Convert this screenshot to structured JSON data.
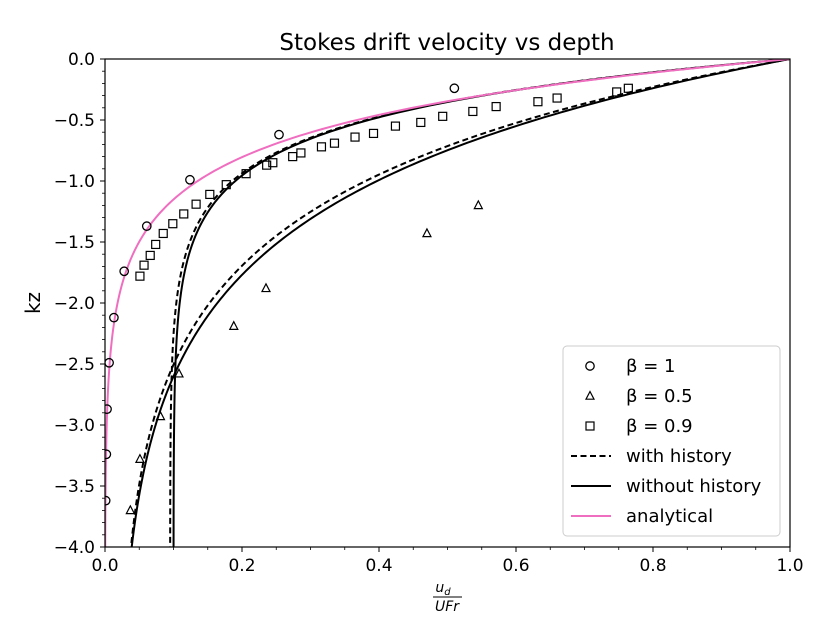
{
  "chart_data": {
    "type": "scatter",
    "title": "Stokes drift velocity vs depth",
    "xlabel_num": "u",
    "xlabel_sub": "d",
    "xlabel_den": "UFr",
    "ylabel": "kz",
    "xlim": [
      0.0,
      1.0
    ],
    "ylim": [
      -4.0,
      0.0
    ],
    "x_ticks": [
      0.0,
      0.2,
      0.4,
      0.6,
      0.8,
      1.0
    ],
    "x_tick_labels": [
      "0.0",
      "0.2",
      "0.4",
      "0.6",
      "0.8",
      "1.0"
    ],
    "y_ticks": [
      0.0,
      -0.5,
      -1.0,
      -1.5,
      -2.0,
      -2.5,
      -3.0,
      -3.5,
      -4.0
    ],
    "y_tick_labels": [
      "0.0",
      "−0.5",
      "−1.0",
      "−1.5",
      "−2.0",
      "−2.5",
      "−3.0",
      "−3.5",
      "−4.0"
    ],
    "grid": false,
    "legend_position": "lower-right",
    "markers": [
      {
        "name": "β =  1",
        "marker": "circle",
        "points": [
          [
            0.001,
            -3.62
          ],
          [
            0.002,
            -3.24
          ],
          [
            0.003,
            -2.87
          ],
          [
            0.006,
            -2.49
          ],
          [
            0.013,
            -2.12
          ],
          [
            0.028,
            -1.74
          ],
          [
            0.061,
            -1.37
          ],
          [
            0.124,
            -0.99
          ],
          [
            0.254,
            -0.62
          ],
          [
            0.51,
            -0.24
          ]
        ]
      },
      {
        "name": "β =  0.5",
        "marker": "triangle",
        "points": [
          [
            0.037,
            -3.7
          ],
          [
            0.051,
            -3.28
          ],
          [
            0.081,
            -2.93
          ],
          [
            0.108,
            -2.58
          ],
          [
            0.188,
            -2.19
          ],
          [
            0.235,
            -1.88
          ],
          [
            0.47,
            -1.43
          ],
          [
            0.545,
            -1.2
          ]
        ]
      },
      {
        "name": "β =  0.9",
        "marker": "square",
        "points": [
          [
            0.051,
            -1.78
          ],
          [
            0.057,
            -1.69
          ],
          [
            0.066,
            -1.61
          ],
          [
            0.074,
            -1.52
          ],
          [
            0.085,
            -1.43
          ],
          [
            0.099,
            -1.35
          ],
          [
            0.115,
            -1.27
          ],
          [
            0.133,
            -1.19
          ],
          [
            0.153,
            -1.11
          ],
          [
            0.177,
            -1.03
          ],
          [
            0.206,
            -0.94
          ],
          [
            0.236,
            -0.87
          ],
          [
            0.245,
            -0.85
          ],
          [
            0.274,
            -0.8
          ],
          [
            0.286,
            -0.77
          ],
          [
            0.316,
            -0.72
          ],
          [
            0.335,
            -0.69
          ],
          [
            0.365,
            -0.64
          ],
          [
            0.392,
            -0.61
          ],
          [
            0.424,
            -0.55
          ],
          [
            0.461,
            -0.52
          ],
          [
            0.493,
            -0.47
          ],
          [
            0.537,
            -0.43
          ],
          [
            0.571,
            -0.39
          ],
          [
            0.632,
            -0.35
          ],
          [
            0.66,
            -0.32
          ],
          [
            0.747,
            -0.27
          ],
          [
            0.764,
            -0.24
          ]
        ]
      }
    ],
    "lines": [
      {
        "name": "with history",
        "style": "dashed",
        "color": "#000000",
        "family": "exp",
        "alpha": 0.095,
        "beta": 0.0,
        "k": 2.3
      },
      {
        "name": "without history",
        "style": "solid",
        "color": "#000000",
        "family": "exp",
        "alpha": 0.1,
        "beta": 0.0,
        "k": 2.3
      },
      {
        "name": "with history",
        "style": "dashed",
        "color": "#000000",
        "family": "exp",
        "alpha": 0.02,
        "beta": 0.0,
        "k": 1.0
      },
      {
        "name": "without history",
        "style": "solid",
        "color": "#000000",
        "family": "exp",
        "alpha": 0.017,
        "beta": 0.0,
        "k": 0.95
      },
      {
        "name": "analytical",
        "style": "solid",
        "color": "#f06ec0",
        "family": "exp",
        "alpha": 0.0,
        "beta": 0.0,
        "k": 2.0
      }
    ],
    "legend_entries": [
      {
        "label": "β =  1",
        "type": "circle"
      },
      {
        "label": "β =  0.5",
        "type": "triangle"
      },
      {
        "label": "β =  0.9",
        "type": "square"
      },
      {
        "label": "with history",
        "type": "dashed"
      },
      {
        "label": "without history",
        "type": "solid"
      },
      {
        "label": "analytical",
        "type": "pink"
      }
    ],
    "colors": {
      "analytical": "#f06ec0",
      "markers": "#000000",
      "axis": "#000000"
    }
  }
}
